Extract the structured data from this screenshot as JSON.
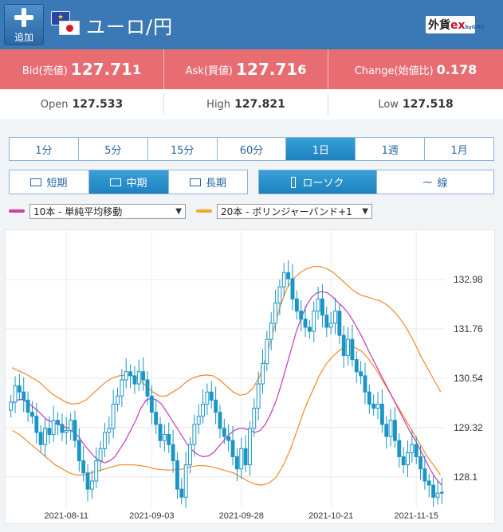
{
  "header": {
    "add_label": "追加",
    "pair": "ユーロ/円",
    "logo_main": "外貨",
    "logo_ex": "ex",
    "logo_sub": "byGMO"
  },
  "quote": {
    "bid_label": "Bid(売値)",
    "bid_main": "127.71",
    "bid_last": "1",
    "ask_label": "Ask(買値)",
    "ask_main": "127.71",
    "ask_last": "6",
    "change_label": "Change(始値比)",
    "change_value": "0.178"
  },
  "ohl": {
    "open_label": "Open",
    "open_value": "127.533",
    "high_label": "High",
    "high_value": "127.821",
    "low_label": "Low",
    "low_value": "127.518"
  },
  "timeframes": [
    "1分",
    "5分",
    "15分",
    "60分",
    "1日",
    "1週",
    "1月"
  ],
  "active_timeframe": "1日",
  "terms": [
    "短期",
    "中期",
    "長期"
  ],
  "active_term": "中期",
  "chart_types": [
    "ローソク",
    "線"
  ],
  "active_chart_type": "ローソク",
  "indicators": {
    "ma_select": "10本 - 単純平均移動",
    "ma_color": "#d63c9e",
    "bb_select": "20本 - ボリンジャーバンド+1",
    "bb_color": "#f5a623"
  },
  "colors": {
    "header": "#3a79b5",
    "quote_bar": "#e76d72",
    "candle": "#1a95c6",
    "active_tab": "#1d81bd"
  },
  "chart_data": {
    "type": "candlestick",
    "x_ticks": [
      "2021-08-11",
      "2021-09-03",
      "2021-09-28",
      "2021-10-21",
      "2021-11-15"
    ],
    "y_ticks": [
      132.98,
      131.76,
      130.54,
      129.32,
      128.1
    ],
    "ylim": [
      127.35,
      134.2
    ],
    "close": [
      129.95,
      130.35,
      130.2,
      130.0,
      129.7,
      129.6,
      129.2,
      128.9,
      129.3,
      129.15,
      129.5,
      129.4,
      129.2,
      129.25,
      129.5,
      129.0,
      128.5,
      128.2,
      127.8,
      128.0,
      128.5,
      128.8,
      129.2,
      129.3,
      129.9,
      130.1,
      130.5,
      130.7,
      130.6,
      130.4,
      130.7,
      130.5,
      130.1,
      129.7,
      129.4,
      129.0,
      129.15,
      128.9,
      128.5,
      127.8,
      127.6,
      128.4,
      128.9,
      129.4,
      129.6,
      129.9,
      130.2,
      130.0,
      129.7,
      129.3,
      129.1,
      129.0,
      128.6,
      128.3,
      128.8,
      128.4,
      129.3,
      129.8,
      130.4,
      130.9,
      131.5,
      131.9,
      132.4,
      132.8,
      133.15,
      133.0,
      132.5,
      132.2,
      132.0,
      131.8,
      131.7,
      132.2,
      132.5,
      132.1,
      131.8,
      131.9,
      132.2,
      131.6,
      131.1,
      131.5,
      131.0,
      130.7,
      130.6,
      130.2,
      129.9,
      129.8,
      129.9,
      129.4,
      129.1,
      129.5,
      129.0,
      128.6,
      128.4,
      128.7,
      128.9,
      128.6,
      128.3,
      128.0,
      127.9,
      127.6,
      127.7,
      127.72
    ],
    "ma10": [
      129.9,
      130.0,
      130.02,
      129.95,
      129.85,
      129.75,
      129.62,
      129.5,
      129.45,
      129.4,
      129.35,
      129.3,
      129.2,
      129.1,
      128.9,
      128.75,
      128.6,
      128.5,
      128.45,
      128.5,
      128.6,
      128.8,
      129.0,
      129.25,
      129.5,
      129.8,
      130.0,
      130.05,
      130.0,
      129.9,
      129.7,
      129.5,
      129.3,
      129.1,
      128.9,
      128.75,
      128.65,
      128.6,
      128.62,
      128.7,
      128.85,
      129.0,
      129.15,
      129.25,
      129.3,
      129.3,
      129.25,
      129.2,
      129.25,
      129.4,
      129.65,
      129.95,
      130.35,
      130.8,
      131.25,
      131.7,
      132.05,
      132.35,
      132.55,
      132.65,
      132.68,
      132.65,
      132.55,
      132.42,
      132.3,
      132.15,
      131.95,
      131.72,
      131.48,
      131.2,
      130.95,
      130.7,
      130.45,
      130.2,
      129.95,
      129.7,
      129.45,
      129.2,
      129.0,
      128.75,
      128.5,
      128.25,
      128.05,
      127.9
    ],
    "bb_upper": [
      130.8,
      130.72,
      130.65,
      130.55,
      130.45,
      130.3,
      130.15,
      130.05,
      129.95,
      129.9,
      129.92,
      130.0,
      130.15,
      130.3,
      130.45,
      130.55,
      130.6,
      130.62,
      130.6,
      130.5,
      130.35,
      130.2,
      130.1,
      130.1,
      130.2,
      130.3,
      130.45,
      130.55,
      130.6,
      130.62,
      130.6,
      130.5,
      130.35,
      130.2,
      130.12,
      130.15,
      130.3,
      130.6,
      131.1,
      131.7,
      132.3,
      132.75,
      133.0,
      133.15,
      133.25,
      133.3,
      133.3,
      133.25,
      133.15,
      133.0,
      132.85,
      132.7,
      132.6,
      132.55,
      132.5,
      132.45,
      132.35,
      132.2,
      132.0,
      131.75,
      131.45,
      131.1,
      130.8,
      130.5,
      130.2
    ],
    "bb_lower": [
      129.25,
      129.15,
      129.0,
      128.85,
      128.7,
      128.55,
      128.4,
      128.3,
      128.2,
      128.15,
      128.15,
      128.2,
      128.25,
      128.3,
      128.35,
      128.4,
      128.4,
      128.4,
      128.38,
      128.35,
      128.3,
      128.28,
      128.27,
      128.28,
      128.3,
      128.35,
      128.38,
      128.38,
      128.35,
      128.3,
      128.25,
      128.2,
      128.1,
      128.0,
      127.92,
      127.9,
      127.95,
      128.1,
      128.4,
      128.8,
      129.3,
      129.8,
      130.2,
      130.6,
      130.9,
      131.1,
      131.25,
      131.35,
      131.3,
      131.2,
      131.0,
      130.75,
      130.45,
      130.15,
      129.85,
      129.55,
      129.25,
      128.95,
      128.65,
      128.4,
      128.15
    ]
  }
}
